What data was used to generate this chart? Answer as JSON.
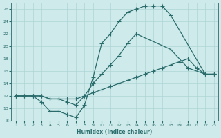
{
  "xlabel": "Humidex (Indice chaleur)",
  "bg_color": "#ceeaea",
  "grid_color": "#aed4d4",
  "line_color": "#2a6b6b",
  "xlim": [
    -0.5,
    23.5
  ],
  "ylim": [
    8,
    27
  ],
  "xticks": [
    0,
    1,
    2,
    3,
    4,
    5,
    6,
    7,
    8,
    9,
    10,
    11,
    12,
    13,
    14,
    15,
    16,
    17,
    18,
    19,
    20,
    21,
    22,
    23
  ],
  "yticks": [
    8,
    10,
    12,
    14,
    16,
    18,
    20,
    22,
    24,
    26
  ],
  "line1_x": [
    0,
    1,
    2,
    3,
    4,
    5,
    6,
    7,
    8,
    9,
    10,
    11,
    12,
    13,
    14,
    15,
    16,
    17,
    18,
    22,
    23
  ],
  "line1_y": [
    12,
    12,
    12,
    11,
    9.5,
    9.5,
    9,
    8.5,
    10.5,
    15,
    20.5,
    22,
    24,
    25.5,
    26,
    26.5,
    26.5,
    26.5,
    25,
    15.5,
    15.5
  ],
  "line2_x": [
    0,
    2,
    3,
    4,
    5,
    6,
    7,
    8,
    9,
    10,
    11,
    12,
    13,
    14,
    15,
    16,
    17,
    18,
    19,
    20,
    21,
    22,
    23
  ],
  "line2_y": [
    12,
    12,
    12,
    11.5,
    11.5,
    11.5,
    11.5,
    12,
    12.5,
    13,
    13.5,
    14,
    14.5,
    15,
    15.5,
    16,
    16.5,
    17,
    17.5,
    18,
    16.5,
    15.5,
    15.5
  ],
  "line3_x": [
    0,
    1,
    2,
    3,
    4,
    5,
    6,
    7,
    8,
    9,
    10,
    11,
    12,
    13,
    14,
    18,
    20,
    22,
    23
  ],
  "line3_y": [
    12,
    12,
    12,
    12,
    11.5,
    11.5,
    11,
    10.5,
    12,
    14,
    15.5,
    17,
    18.5,
    20.5,
    22,
    19.5,
    16.5,
    15.5,
    15.5
  ]
}
